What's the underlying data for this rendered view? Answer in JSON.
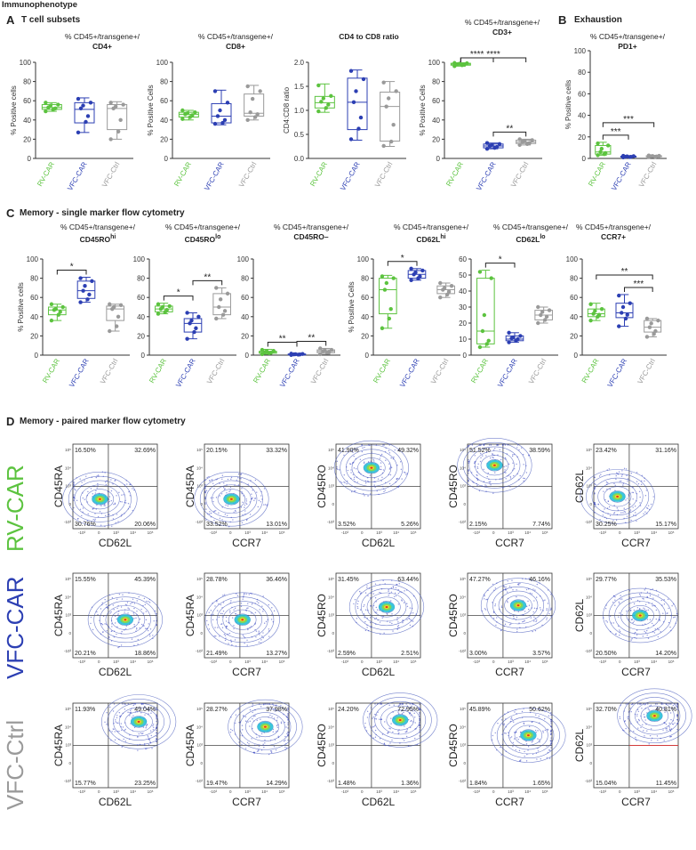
{
  "header": {
    "title": "Immunophenotype"
  },
  "colors": {
    "rv": "#5cc33f",
    "vfc": "#2c3fb3",
    "ctrl": "#9a9a9a",
    "red": "#d23b3b"
  },
  "categories": [
    "RV-CAR",
    "VFC-CAR",
    "VFC-Ctrl"
  ],
  "sections": {
    "a": {
      "letter": "A",
      "title": "T cell subsets"
    },
    "b": {
      "letter": "B",
      "title": "Exhaustion"
    },
    "c": {
      "letter": "C",
      "title": "Memory - single marker flow cytometry"
    },
    "d": {
      "letter": "D",
      "title": "Memory - paired marker flow cytometry"
    }
  },
  "chart_data": [
    {
      "id": "cd4",
      "type": "box",
      "prefix": "% CD45+/transgene+/",
      "marker": "CD4+",
      "sup": "",
      "ylabel": "% Positive cells",
      "ylim": [
        0,
        100
      ],
      "yticks": [
        0,
        20,
        40,
        60,
        80,
        100
      ],
      "groups": [
        {
          "min": 49,
          "q1": 51,
          "med": 53,
          "q3": 56,
          "max": 58,
          "points": [
            49,
            51,
            52,
            53,
            55,
            56,
            58
          ]
        },
        {
          "min": 27,
          "q1": 37,
          "med": 51,
          "q3": 58,
          "max": 63,
          "points": [
            27,
            38,
            44,
            52,
            55,
            58,
            62
          ]
        },
        {
          "min": 20,
          "q1": 30,
          "med": 52,
          "q3": 56,
          "max": 59,
          "points": [
            20,
            28,
            40,
            52,
            54,
            56,
            58
          ]
        }
      ],
      "sig": []
    },
    {
      "id": "cd8",
      "type": "box",
      "prefix": "% CD45+/transgene+/",
      "marker": "CD8+",
      "sup": "",
      "ylabel": "% Positive Cells",
      "ylim": [
        0,
        100
      ],
      "yticks": [
        0,
        20,
        40,
        60,
        80,
        100
      ],
      "groups": [
        {
          "min": 40,
          "q1": 43,
          "med": 46,
          "q3": 48,
          "max": 50,
          "points": [
            41,
            43,
            45,
            46,
            47,
            48,
            50
          ]
        },
        {
          "min": 35,
          "q1": 37,
          "med": 44,
          "q3": 57,
          "max": 71,
          "points": [
            36,
            37,
            40,
            44,
            50,
            58,
            70
          ]
        },
        {
          "min": 40,
          "q1": 44,
          "med": 47,
          "q3": 67,
          "max": 76,
          "points": [
            40,
            43,
            46,
            48,
            62,
            70,
            75
          ]
        }
      ],
      "sig": []
    },
    {
      "id": "ratio",
      "type": "box",
      "prefix": "",
      "marker": "CD4 to CD8 ratio",
      "sup": "",
      "ylabel": "CD4:CD8 ratio",
      "ylim": [
        0,
        2
      ],
      "yticks": [
        0,
        0.5,
        1.0,
        1.5,
        2.0
      ],
      "groups": [
        {
          "min": 0.96,
          "q1": 1.05,
          "med": 1.16,
          "q3": 1.29,
          "max": 1.55,
          "points": [
            0.98,
            1.05,
            1.12,
            1.18,
            1.25,
            1.3,
            1.52
          ]
        },
        {
          "min": 0.38,
          "q1": 0.6,
          "med": 1.17,
          "q3": 1.67,
          "max": 1.84,
          "points": [
            0.4,
            0.62,
            0.85,
            1.17,
            1.4,
            1.65,
            1.82
          ]
        },
        {
          "min": 0.25,
          "q1": 0.36,
          "med": 1.08,
          "q3": 1.38,
          "max": 1.6,
          "points": [
            0.26,
            0.35,
            0.7,
            1.08,
            1.25,
            1.4,
            1.58
          ]
        }
      ],
      "sig": []
    },
    {
      "id": "cd3",
      "type": "box",
      "prefix": "% CD45+/transgene+/",
      "marker": "CD3+",
      "sup": "",
      "ylabel": "% Positive Cells",
      "ylim": [
        0,
        100
      ],
      "yticks": [
        0,
        20,
        40,
        60,
        80,
        100
      ],
      "groups": [
        {
          "min": 96,
          "q1": 97,
          "med": 98,
          "q3": 99,
          "max": 99.5,
          "points": [
            96,
            97,
            97.5,
            98,
            98.5,
            99,
            99.3
          ]
        },
        {
          "min": 10,
          "q1": 11,
          "med": 13,
          "q3": 15,
          "max": 16,
          "points": [
            10,
            11,
            12,
            13,
            14,
            15,
            16
          ]
        },
        {
          "min": 14,
          "q1": 15.5,
          "med": 17,
          "q3": 19,
          "max": 20,
          "points": [
            14,
            15,
            16,
            17,
            18,
            19,
            20
          ]
        }
      ],
      "sig": [
        {
          "from": 0,
          "to": 1,
          "label": "****",
          "level": 1
        },
        {
          "from": 0,
          "to": 2,
          "label": "****",
          "level": 2
        },
        {
          "from": 1,
          "to": 2,
          "label": "**",
          "level": 0
        }
      ]
    },
    {
      "id": "pd1",
      "type": "box",
      "prefix": "% CD45+/transgene+/",
      "marker": "PD1+",
      "sup": "",
      "ylabel": "% Positive cells",
      "ylim": [
        0,
        100
      ],
      "yticks": [
        0,
        20,
        40,
        60,
        80,
        100
      ],
      "groups": [
        {
          "min": 3,
          "q1": 4,
          "med": 6,
          "q3": 12,
          "max": 15,
          "points": [
            3,
            4,
            5,
            6,
            9,
            12,
            14
          ]
        },
        {
          "min": 1,
          "q1": 1.3,
          "med": 1.6,
          "q3": 2.1,
          "max": 2.5,
          "points": [
            1,
            1.3,
            1.5,
            1.6,
            1.9,
            2.1,
            2.4
          ]
        },
        {
          "min": 1.2,
          "q1": 1.6,
          "med": 2,
          "q3": 2.4,
          "max": 2.8,
          "points": [
            1.2,
            1.5,
            1.8,
            2,
            2.2,
            2.4,
            2.7
          ]
        }
      ],
      "sig": [
        {
          "from": 0,
          "to": 1,
          "label": "***",
          "level": 0
        },
        {
          "from": 0,
          "to": 2,
          "label": "***",
          "level": 1
        }
      ]
    },
    {
      "id": "cd45rohi",
      "type": "box",
      "prefix": "% CD45+/transgene+/",
      "marker": "CD45RO",
      "sup": "hi",
      "ylabel": "% Positive cells",
      "ylim": [
        0,
        100
      ],
      "yticks": [
        0,
        20,
        40,
        60,
        80,
        100
      ],
      "groups": [
        {
          "min": 36,
          "q1": 42,
          "med": 47,
          "q3": 50,
          "max": 53,
          "points": [
            36,
            42,
            45,
            47,
            48,
            50,
            53
          ]
        },
        {
          "min": 55,
          "q1": 59,
          "med": 67,
          "q3": 77,
          "max": 81,
          "points": [
            55,
            58,
            63,
            67,
            72,
            77,
            80
          ]
        },
        {
          "min": 25,
          "q1": 36,
          "med": 48,
          "q3": 51,
          "max": 53,
          "points": [
            25,
            30,
            40,
            48,
            50,
            52,
            53
          ]
        }
      ],
      "sig": [
        {
          "from": 0,
          "to": 1,
          "label": "*",
          "level": 0
        }
      ]
    },
    {
      "id": "cd45rolo",
      "type": "box",
      "prefix": "% CD45+/transgene+/",
      "marker": "CD45RO",
      "sup": "lo",
      "ylabel": "",
      "ylim": [
        0,
        100
      ],
      "yticks": [
        0,
        20,
        40,
        60,
        80,
        100
      ],
      "groups": [
        {
          "min": 43,
          "q1": 45,
          "med": 48,
          "q3": 51,
          "max": 54,
          "points": [
            43,
            45,
            47,
            48,
            50,
            51,
            53
          ]
        },
        {
          "min": 17,
          "q1": 24,
          "med": 33,
          "q3": 38,
          "max": 44,
          "points": [
            17,
            24,
            28,
            33,
            36,
            40,
            44
          ]
        },
        {
          "min": 38,
          "q1": 42,
          "med": 50,
          "q3": 64,
          "max": 70,
          "points": [
            38,
            42,
            46,
            50,
            58,
            64,
            70
          ]
        }
      ],
      "sig": [
        {
          "from": 0,
          "to": 1,
          "label": "*",
          "level": 0
        },
        {
          "from": 1,
          "to": 2,
          "label": "**",
          "level": 0
        }
      ]
    },
    {
      "id": "cd45roneg",
      "type": "box",
      "prefix": "% CD45+/transgene+/",
      "marker": "CD45RO–",
      "sup": "",
      "ylabel": "",
      "ylim": [
        0,
        100
      ],
      "yticks": [
        0,
        20,
        40,
        60,
        80,
        100
      ],
      "groups": [
        {
          "min": 1,
          "q1": 2,
          "med": 3,
          "q3": 4,
          "max": 6,
          "points": [
            1,
            2,
            2.5,
            3,
            4,
            4.5,
            5.5
          ]
        },
        {
          "min": 0.2,
          "q1": 0.5,
          "med": 0.8,
          "q3": 1.2,
          "max": 1.5,
          "points": [
            0.2,
            0.5,
            0.7,
            0.8,
            1,
            1.2,
            1.5
          ]
        },
        {
          "min": 1,
          "q1": 2.5,
          "med": 4,
          "q3": 5.5,
          "max": 7,
          "points": [
            1,
            2.5,
            3,
            4,
            5,
            5.5,
            7
          ]
        }
      ],
      "sig": [
        {
          "from": 0,
          "to": 1,
          "label": "**",
          "level": 0
        },
        {
          "from": 1,
          "to": 2,
          "label": "**",
          "level": 0
        }
      ]
    },
    {
      "id": "cd62lhi",
      "type": "box",
      "prefix": "% CD45+/transgene+/",
      "marker": "CD62L",
      "sup": "hi",
      "ylabel": "% Positive Cells",
      "ylim": [
        0,
        100
      ],
      "yticks": [
        0,
        20,
        40,
        60,
        80,
        100
      ],
      "groups": [
        {
          "min": 28,
          "q1": 43,
          "med": 68,
          "q3": 80,
          "max": 83,
          "points": [
            28,
            38,
            48,
            68,
            75,
            80,
            82
          ]
        },
        {
          "min": 78,
          "q1": 80,
          "med": 84,
          "q3": 88,
          "max": 90,
          "points": [
            78,
            80,
            82,
            84,
            86,
            88,
            90
          ]
        },
        {
          "min": 60,
          "q1": 64,
          "med": 68,
          "q3": 72,
          "max": 75,
          "points": [
            60,
            63,
            66,
            68,
            70,
            72,
            75
          ]
        }
      ],
      "sig": [
        {
          "from": 0,
          "to": 1,
          "label": "*",
          "level": 0
        }
      ]
    },
    {
      "id": "cd62llo",
      "type": "box",
      "prefix": "% CD45+/transgene+/",
      "marker": "CD62L",
      "sup": "lo",
      "ylabel": "",
      "ylim": [
        0,
        60
      ],
      "yticks": [
        0,
        10,
        20,
        30,
        40,
        50,
        60
      ],
      "groups": [
        {
          "min": 5,
          "q1": 7,
          "med": 15,
          "q3": 48,
          "max": 53,
          "points": [
            5,
            7,
            9,
            15,
            25,
            48,
            52
          ]
        },
        {
          "min": 8,
          "q1": 9,
          "med": 10,
          "q3": 12,
          "max": 14,
          "points": [
            8,
            9,
            10,
            10.5,
            11,
            12,
            14
          ]
        },
        {
          "min": 20,
          "q1": 22,
          "med": 25,
          "q3": 28,
          "max": 30,
          "points": [
            20,
            22,
            24,
            25,
            27,
            28,
            30
          ]
        }
      ],
      "sig": [
        {
          "from": 0,
          "to": 1,
          "label": "*",
          "level": 0
        }
      ]
    },
    {
      "id": "ccr7",
      "type": "box",
      "prefix": "% CD45+/transgene+/",
      "marker": "CCR7+",
      "sup": "",
      "ylabel": "",
      "ylim": [
        0,
        100
      ],
      "yticks": [
        0,
        20,
        40,
        60,
        80,
        100
      ],
      "groups": [
        {
          "min": 36,
          "q1": 40,
          "med": 43,
          "q3": 48,
          "max": 54,
          "points": [
            36,
            40,
            42,
            43,
            46,
            48,
            53
          ]
        },
        {
          "min": 30,
          "q1": 39,
          "med": 44,
          "q3": 54,
          "max": 63,
          "points": [
            30,
            38,
            42,
            44,
            50,
            54,
            62
          ]
        },
        {
          "min": 19,
          "q1": 24,
          "med": 29,
          "q3": 36,
          "max": 38,
          "points": [
            19,
            22,
            25,
            29,
            33,
            36,
            38
          ]
        }
      ],
      "sig": [
        {
          "from": 0,
          "to": 2,
          "label": "**",
          "level": 1
        },
        {
          "from": 1,
          "to": 2,
          "label": "***",
          "level": 0
        }
      ]
    }
  ],
  "flow": {
    "rows": [
      {
        "label": "RV-CAR",
        "color": "#5cc33f"
      },
      {
        "label": "VFC-CAR",
        "color": "#2c3fb3"
      },
      {
        "label": "VFC-Ctrl",
        "color": "#9a9a9a"
      }
    ],
    "cols": [
      {
        "x": "CD62L",
        "y": "CD45RA"
      },
      {
        "x": "CCR7",
        "y": "CD45RA"
      },
      {
        "x": "CD62L",
        "y": "CD45RO"
      },
      {
        "x": "CCR7",
        "y": "CD45RO"
      },
      {
        "x": "CCR7",
        "y": "CD62L"
      }
    ],
    "quadrants": [
      [
        [
          "16.50%",
          "32.69%",
          "30.76%",
          "20.06%"
        ],
        [
          "20.15%",
          "33.32%",
          "33.52%",
          "13.01%"
        ],
        [
          "41.90%",
          "49.32%",
          "3.52%",
          "5.26%"
        ],
        [
          "51.52%",
          "38.59%",
          "2.15%",
          "7.74%"
        ],
        [
          "23.42%",
          "31.16%",
          "30.25%",
          "15.17%"
        ]
      ],
      [
        [
          "15.55%",
          "45.39%",
          "20.21%",
          "18.86%"
        ],
        [
          "28.78%",
          "36.46%",
          "21.49%",
          "13.27%"
        ],
        [
          "31.45%",
          "63.44%",
          "2.59%",
          "2.51%"
        ],
        [
          "47.27%",
          "46.16%",
          "3.00%",
          "3.57%"
        ],
        [
          "29.77%",
          "35.53%",
          "20.50%",
          "14.20%"
        ]
      ],
      [
        [
          "11.93%",
          "49.04%",
          "15.77%",
          "23.25%"
        ],
        [
          "28.27%",
          "37.98%",
          "19.47%",
          "14.29%"
        ],
        [
          "24.20%",
          "72.95%",
          "1.48%",
          "1.36%"
        ],
        [
          "45.89%",
          "50.62%",
          "1.84%",
          "1.65%"
        ],
        [
          "32.70%",
          "40.81%",
          "15.04%",
          "11.45%"
        ]
      ]
    ],
    "ticks": {
      "y": [
        "10⁵",
        "10⁴",
        "10³",
        "0",
        "-10³"
      ],
      "x": [
        "-10³",
        "0",
        "10³",
        "10⁴",
        "10⁵"
      ]
    }
  }
}
